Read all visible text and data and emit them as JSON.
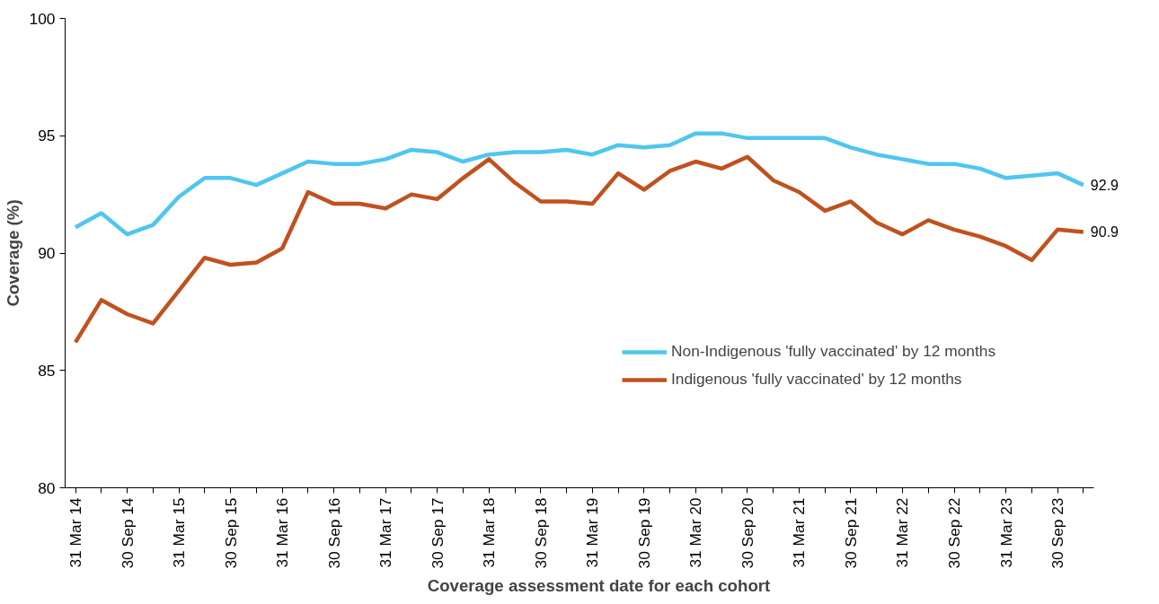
{
  "chart_data": {
    "type": "line",
    "xlabel": "Coverage assessment date for each cohort",
    "ylabel": "Coverage (%)",
    "categories": [
      "31 Mar 14",
      null,
      "30 Sep 14",
      null,
      "31 Mar 15",
      null,
      "30 Sep 15",
      null,
      "31 Mar 16",
      null,
      "30 Sep 16",
      null,
      "31 Mar 17",
      null,
      "30 Sep 17",
      null,
      "31 Mar 18",
      null,
      "30 Sep 18",
      null,
      "31 Mar 19",
      null,
      "30 Sep 19",
      null,
      "31 Mar 20",
      null,
      "30 Sep 20",
      null,
      "31 Mar 21",
      null,
      "30 Sep 21",
      null,
      "31 Mar 22",
      null,
      "30 Sep 22",
      null,
      "31 Mar 23",
      null,
      "30 Sep 23",
      null
    ],
    "series": [
      {
        "name": "Non-Indigenous 'fully vaccinated' by 12 months",
        "color": "#4fc6f0",
        "values": [
          91.1,
          91.7,
          90.8,
          91.2,
          92.4,
          93.2,
          93.2,
          92.9,
          93.4,
          93.9,
          93.8,
          93.8,
          94.0,
          94.4,
          94.3,
          93.9,
          94.2,
          94.3,
          94.3,
          94.4,
          94.2,
          94.6,
          94.5,
          94.6,
          95.1,
          95.1,
          94.9,
          94.9,
          94.9,
          94.9,
          94.5,
          94.2,
          94.0,
          93.8,
          93.8,
          93.6,
          93.2,
          93.3,
          93.4,
          92.9
        ],
        "value_labels": [
          null,
          null,
          null,
          null,
          null,
          null,
          null,
          null,
          null,
          null,
          null,
          null,
          null,
          null,
          null,
          null,
          null,
          null,
          null,
          null,
          null,
          null,
          null,
          null,
          null,
          null,
          null,
          null,
          null,
          null,
          null,
          null,
          null,
          null,
          null,
          null,
          null,
          null,
          null,
          "92.9"
        ]
      },
      {
        "name": "Indigenous 'fully vaccinated' by 12 months",
        "color": "#c0521f",
        "values": [
          86.2,
          88.0,
          87.4,
          87.0,
          88.4,
          89.8,
          89.5,
          89.6,
          90.2,
          92.6,
          92.1,
          92.1,
          91.9,
          92.5,
          92.3,
          93.2,
          94.0,
          93.0,
          92.2,
          92.2,
          92.1,
          93.4,
          92.7,
          93.5,
          93.9,
          93.6,
          94.1,
          93.1,
          92.6,
          91.8,
          92.2,
          91.3,
          90.8,
          91.4,
          91.0,
          90.7,
          90.3,
          89.7,
          91.0,
          90.9
        ],
        "value_labels": [
          null,
          null,
          null,
          null,
          null,
          null,
          null,
          null,
          null,
          null,
          null,
          null,
          null,
          null,
          null,
          null,
          null,
          null,
          null,
          null,
          null,
          null,
          null,
          null,
          null,
          null,
          null,
          null,
          null,
          null,
          null,
          null,
          null,
          null,
          null,
          null,
          null,
          null,
          null,
          "90.9"
        ]
      }
    ],
    "ylim": [
      80,
      100
    ],
    "yticks": [
      80,
      85,
      90,
      95,
      100
    ],
    "grid": false,
    "legend": "right",
    "marker": "none",
    "line_style": "solid"
  }
}
